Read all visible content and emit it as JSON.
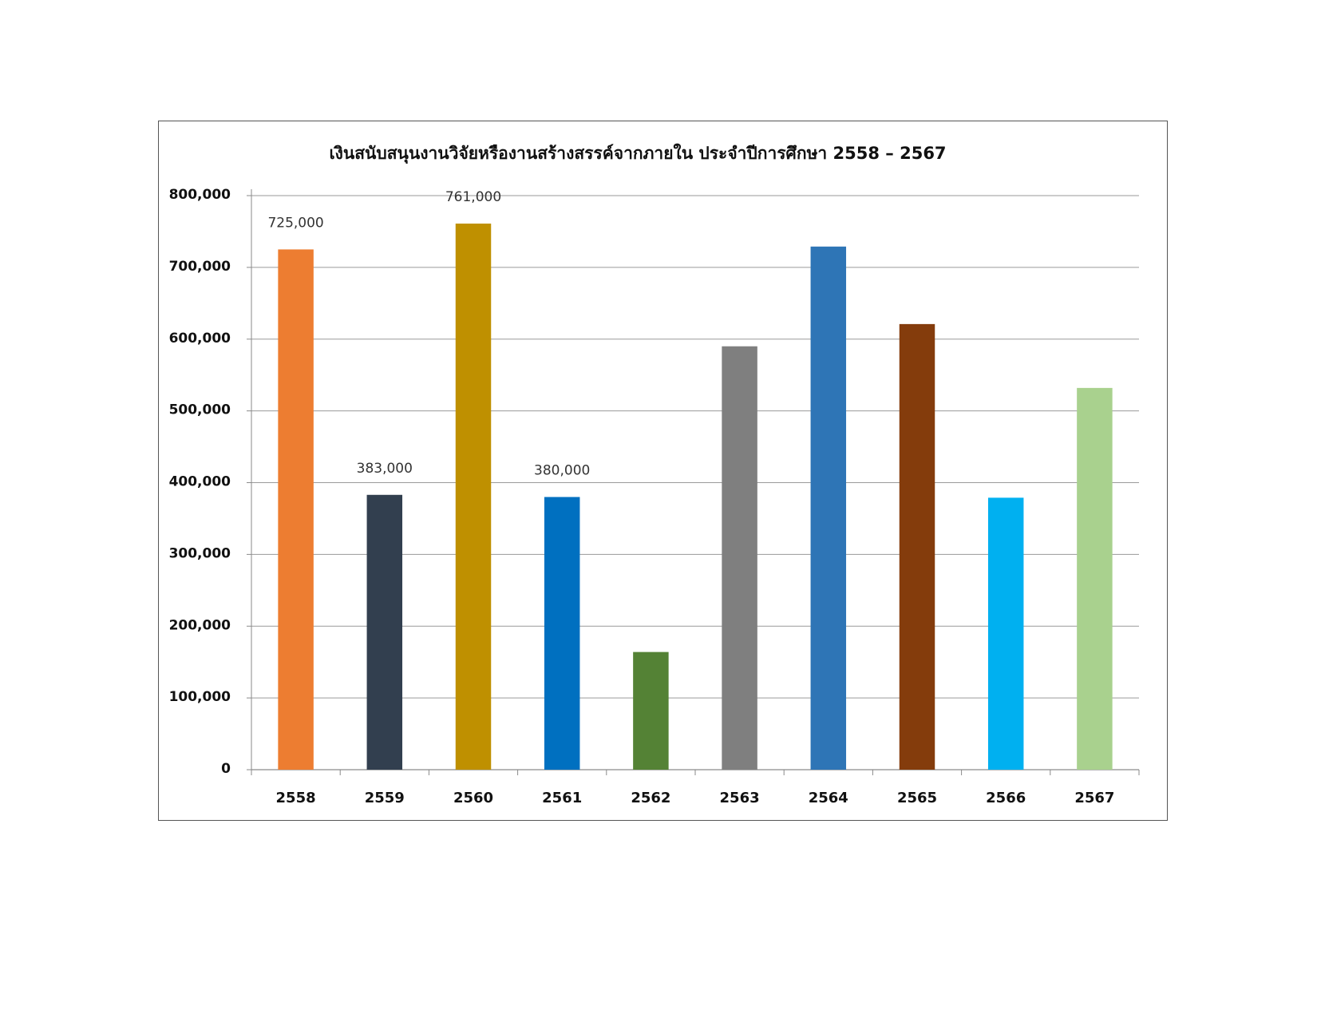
{
  "chart_data": {
    "type": "bar",
    "title": "เงินสนับสนุนงานวิจัยหรืองานสร้างสรรค์จากภายใน ประจำปีการศึกษา 2558 – 2567",
    "xlabel": "",
    "ylabel": "",
    "ylim": [
      0,
      800000
    ],
    "yticks": [
      0,
      100000,
      200000,
      300000,
      400000,
      500000,
      600000,
      700000,
      800000
    ],
    "ytick_labels": [
      "0",
      "100,000",
      "200,000",
      "300,000",
      "400,000",
      "500,000",
      "600,000",
      "700,000",
      "800,000"
    ],
    "categories": [
      "2558",
      "2559",
      "2560",
      "2561",
      "2562",
      "2563",
      "2564",
      "2565",
      "2566",
      "2567"
    ],
    "values": [
      725000,
      383000,
      761000,
      380000,
      164000,
      590000,
      729000,
      621000,
      379000,
      532000
    ],
    "data_labels": [
      "725,000",
      "383,000",
      "761,000",
      "380,000",
      "",
      "",
      "",
      "",
      "",
      ""
    ],
    "colors": [
      "#ED7D31",
      "#323F4F",
      "#BF9000",
      "#0070C0",
      "#548235",
      "#7F7F7F",
      "#2E75B6",
      "#843C0C",
      "#00B0F0",
      "#A9D18E"
    ],
    "grid": true,
    "legend": "none"
  }
}
